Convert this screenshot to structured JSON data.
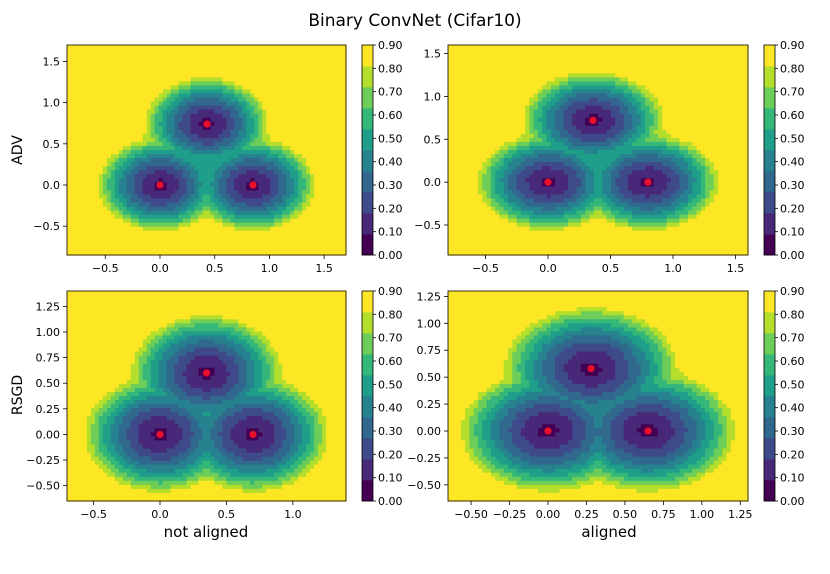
{
  "title": "Binary ConvNet (Cifar10)",
  "row_labels": [
    "ADV",
    "RSGD"
  ],
  "col_labels": [
    "not aligned",
    "aligned"
  ],
  "colorbar": {
    "levels": [
      0.0,
      0.1,
      0.2,
      0.3,
      0.4,
      0.5,
      0.6,
      0.7,
      0.8,
      0.9
    ],
    "tick_labels": [
      "0.00",
      "0.10",
      "0.20",
      "0.30",
      "0.40",
      "0.50",
      "0.60",
      "0.70",
      "0.80",
      "0.90"
    ],
    "colors": [
      "#440154",
      "#482878",
      "#3e4a89",
      "#31688e",
      "#26828e",
      "#1f9e89",
      "#35b779",
      "#6dcd59",
      "#b4de2c",
      "#fde725"
    ]
  },
  "chart_data": [
    {
      "type": "contour",
      "row": "ADV",
      "column": "not aligned",
      "xlim": [
        -0.85,
        1.7
      ],
      "ylim": [
        -0.85,
        1.7
      ],
      "xticks": [
        -0.5,
        0.0,
        0.5,
        1.0,
        1.5
      ],
      "xtick_labels": [
        "−0.5",
        "0.0",
        "0.5",
        "1.0",
        "1.5"
      ],
      "yticks": [
        -0.5,
        0.0,
        0.5,
        1.0,
        1.5
      ],
      "ytick_labels": [
        "−0.5",
        "0.0",
        "0.5",
        "1.0",
        "1.5"
      ],
      "minima": [
        {
          "x": 0.0,
          "y": 0.0
        },
        {
          "x": 0.85,
          "y": 0.0
        },
        {
          "x": 0.43,
          "y": 0.74
        }
      ],
      "level_range": [
        0.0,
        0.9
      ]
    },
    {
      "type": "contour",
      "row": "ADV",
      "column": "aligned",
      "xlim": [
        -0.8,
        1.6
      ],
      "ylim": [
        -0.85,
        1.6
      ],
      "xticks": [
        -0.5,
        0.0,
        0.5,
        1.0,
        1.5
      ],
      "xtick_labels": [
        "−0.5",
        "0.0",
        "0.5",
        "1.0",
        "1.5"
      ],
      "yticks": [
        -0.5,
        0.0,
        0.5,
        1.0,
        1.5
      ],
      "ytick_labels": [
        "−0.5",
        "0.0",
        "0.5",
        "1.0",
        "1.5"
      ],
      "minima": [
        {
          "x": 0.0,
          "y": 0.0
        },
        {
          "x": 0.8,
          "y": 0.0
        },
        {
          "x": 0.36,
          "y": 0.72
        }
      ],
      "level_range": [
        0.0,
        0.9
      ]
    },
    {
      "type": "contour",
      "row": "RSGD",
      "column": "not aligned",
      "xlim": [
        -0.7,
        1.4
      ],
      "ylim": [
        -0.65,
        1.4
      ],
      "xticks": [
        -0.5,
        0.0,
        0.5,
        1.0
      ],
      "xtick_labels": [
        "−0.5",
        "0.0",
        "0.5",
        "1.0"
      ],
      "yticks": [
        -0.5,
        -0.25,
        0.0,
        0.25,
        0.5,
        0.75,
        1.0,
        1.25
      ],
      "ytick_labels": [
        "−0.50",
        "−0.25",
        "0.00",
        "0.25",
        "0.50",
        "0.75",
        "1.00",
        "1.25"
      ],
      "minima": [
        {
          "x": 0.0,
          "y": 0.0
        },
        {
          "x": 0.7,
          "y": 0.0
        },
        {
          "x": 0.35,
          "y": 0.6
        }
      ],
      "level_range": [
        0.0,
        0.9
      ]
    },
    {
      "type": "contour",
      "row": "RSGD",
      "column": "aligned",
      "xlim": [
        -0.65,
        1.3
      ],
      "ylim": [
        -0.65,
        1.3
      ],
      "xticks": [
        -0.5,
        -0.25,
        0.0,
        0.25,
        0.5,
        0.75,
        1.0,
        1.25
      ],
      "xtick_labels": [
        "−0.50",
        "−0.25",
        "0.00",
        "0.25",
        "0.50",
        "0.75",
        "1.00",
        "1.25"
      ],
      "yticks": [
        -0.5,
        -0.25,
        0.0,
        0.25,
        0.5,
        0.75,
        1.0,
        1.25
      ],
      "ytick_labels": [
        "−0.50",
        "−0.25",
        "0.00",
        "0.25",
        "0.50",
        "0.75",
        "1.00",
        "1.25"
      ],
      "minima": [
        {
          "x": 0.0,
          "y": 0.0
        },
        {
          "x": 0.65,
          "y": 0.0
        },
        {
          "x": 0.28,
          "y": 0.58
        }
      ],
      "level_range": [
        0.0,
        0.9
      ]
    }
  ]
}
